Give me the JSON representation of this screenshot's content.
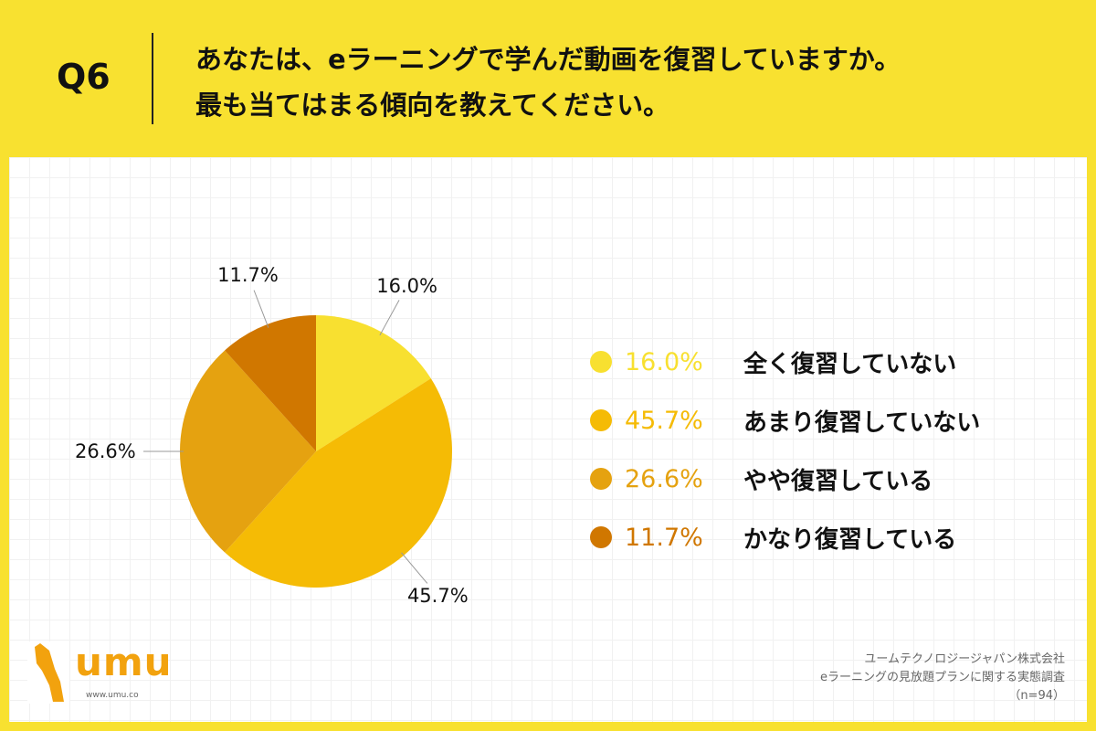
{
  "header": {
    "q_label": "Q6",
    "line1": "あなたは、eラーニングで学んだ動画を復習していますか。",
    "line2": "最も当てはまる傾向を教えてください。"
  },
  "chart_data": {
    "type": "pie",
    "title": "",
    "slices": [
      {
        "label": "全く復習していない",
        "value": 16.0,
        "display": "16.0%",
        "color": "#f8e030"
      },
      {
        "label": "あまり復習していない",
        "value": 45.7,
        "display": "45.7%",
        "color": "#f5bb05"
      },
      {
        "label": "やや復習している",
        "value": 26.6,
        "display": "26.6%",
        "color": "#e5a210"
      },
      {
        "label": "かなり復習している",
        "value": 11.7,
        "display": "11.7%",
        "color": "#d07700"
      }
    ],
    "start": "12 o'clock",
    "direction": "clockwise",
    "legend_position": "right"
  },
  "logo": {
    "text": "umu",
    "url": "www.umu.co"
  },
  "source": {
    "line1": "ユームテクノロジージャパン株式会社",
    "line2": "eラーニングの見放題プランに関する実態調査",
    "line3": "（n=94）"
  },
  "colors": {
    "background": "#f8e130",
    "panel": "#ffffff",
    "logo": "#f2a20e"
  }
}
